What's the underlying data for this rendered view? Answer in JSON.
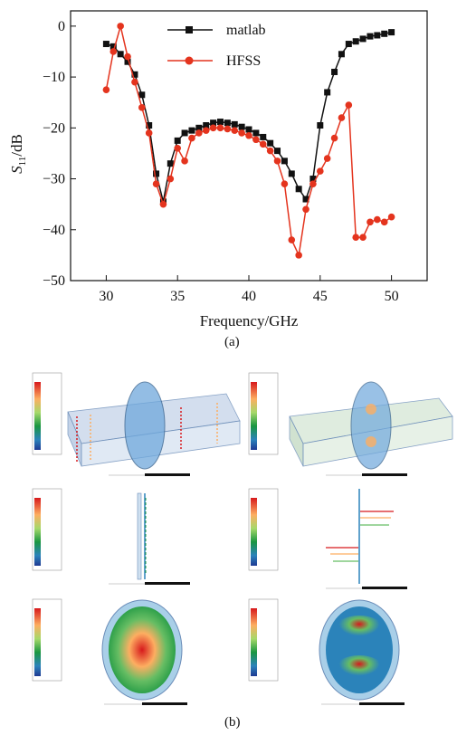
{
  "figure": {
    "label_a": "(a)",
    "label_b": "(b)"
  },
  "chart_data": {
    "type": "line",
    "xlabel": "Frequency/GHz",
    "ylabel_main": "S",
    "ylabel_sub": "11",
    "ylabel_unit": "/dB",
    "xlim": [
      27.5,
      52.5
    ],
    "ylim": [
      -50,
      3
    ],
    "xticks": [
      30,
      35,
      40,
      45,
      50
    ],
    "yticks": [
      0,
      -10,
      -20,
      -30,
      -40,
      -50
    ],
    "xtick_labels": [
      "30",
      "35",
      "40",
      "45",
      "50"
    ],
    "ytick_labels": [
      "0",
      "−10",
      "−20",
      "−30",
      "−40",
      "−50"
    ],
    "grid": false,
    "legend_position": "top-center",
    "series": [
      {
        "name": "matlab",
        "color": "#111111",
        "marker": "square",
        "x": [
          30,
          30.5,
          31,
          31.5,
          32,
          32.5,
          33,
          33.5,
          34,
          34.5,
          35,
          35.5,
          36,
          36.5,
          37,
          37.5,
          38,
          38.5,
          39,
          39.5,
          40,
          40.5,
          41,
          41.5,
          42,
          42.5,
          43,
          43.5,
          44,
          44.5,
          45,
          45.5,
          46,
          46.5,
          47,
          47.5,
          48,
          48.5,
          49,
          49.5,
          50
        ],
        "y": [
          -3.5,
          -4,
          -5.5,
          -7,
          -9.5,
          -13.5,
          -19.5,
          -29,
          -34.5,
          -27,
          -22.5,
          -21,
          -20.5,
          -20,
          -19.5,
          -19,
          -18.8,
          -19,
          -19.3,
          -19.8,
          -20.3,
          -21,
          -21.8,
          -23,
          -24.5,
          -26.5,
          -29,
          -32,
          -34,
          -30,
          -19.5,
          -13,
          -9,
          -5.5,
          -3.5,
          -3,
          -2.5,
          -2,
          -1.8,
          -1.5,
          -1.2
        ]
      },
      {
        "name": "HFSS",
        "color": "#e4341e",
        "marker": "circle",
        "x": [
          30,
          30.5,
          31,
          31.5,
          32,
          32.5,
          33,
          33.5,
          34,
          34.5,
          35,
          35.5,
          36,
          36.5,
          37,
          37.5,
          38,
          38.5,
          39,
          39.5,
          40,
          40.5,
          41,
          41.5,
          42,
          42.5,
          43,
          43.5,
          44,
          44.5,
          45,
          45.5,
          46,
          46.5,
          47,
          47.5,
          48,
          48.5,
          49,
          49.5,
          50
        ],
        "y": [
          -12.5,
          -5,
          0,
          -6,
          -11,
          -16,
          -21,
          -31,
          -35,
          -30,
          -24,
          -26.5,
          -22,
          -21,
          -20.5,
          -20,
          -20,
          -20.2,
          -20.5,
          -21,
          -21.5,
          -22.3,
          -23.2,
          -24.5,
          -26.5,
          -31,
          -42,
          -45,
          -36,
          -31,
          -28.5,
          -26,
          -22,
          -18,
          -15.5,
          -41.5,
          -41.5,
          -38.5,
          -38,
          -38.5,
          -37.5
        ]
      }
    ]
  }
}
